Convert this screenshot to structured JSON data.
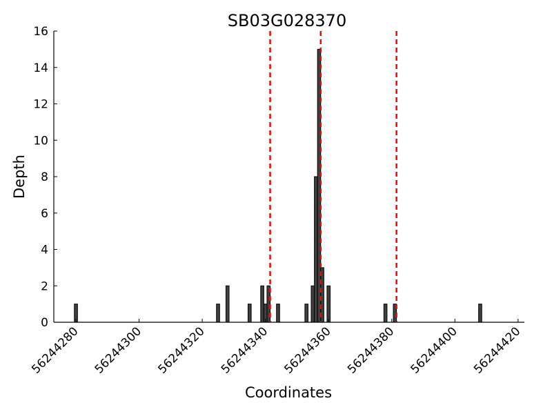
{
  "chart_data": {
    "type": "bar",
    "title": "SB03G028370",
    "xlabel": "Coordinates",
    "ylabel": "Depth",
    "xlim": [
      56244273,
      56244422
    ],
    "ylim": [
      0,
      16
    ],
    "xticks": [
      56244280,
      56244300,
      56244320,
      56244340,
      56244360,
      56244380,
      56244400,
      56244420
    ],
    "yticks": [
      0,
      2,
      4,
      6,
      8,
      10,
      12,
      14,
      16
    ],
    "bars": [
      {
        "x": 56244280,
        "y": 1
      },
      {
        "x": 56244325,
        "y": 1
      },
      {
        "x": 56244328,
        "y": 2
      },
      {
        "x": 56244335,
        "y": 1
      },
      {
        "x": 56244339,
        "y": 2
      },
      {
        "x": 56244340,
        "y": 1
      },
      {
        "x": 56244341,
        "y": 2
      },
      {
        "x": 56244344,
        "y": 1
      },
      {
        "x": 56244353,
        "y": 1
      },
      {
        "x": 56244355,
        "y": 2
      },
      {
        "x": 56244356,
        "y": 8
      },
      {
        "x": 56244357,
        "y": 15
      },
      {
        "x": 56244358,
        "y": 3
      },
      {
        "x": 56244360,
        "y": 2
      },
      {
        "x": 56244378,
        "y": 1
      },
      {
        "x": 56244381,
        "y": 1
      },
      {
        "x": 56244408,
        "y": 1
      }
    ],
    "vlines": [
      56244341.5,
      56244357.5,
      56244381.5
    ],
    "vline_color": "#ff0000",
    "bar_color": "#404040",
    "grid": false
  }
}
